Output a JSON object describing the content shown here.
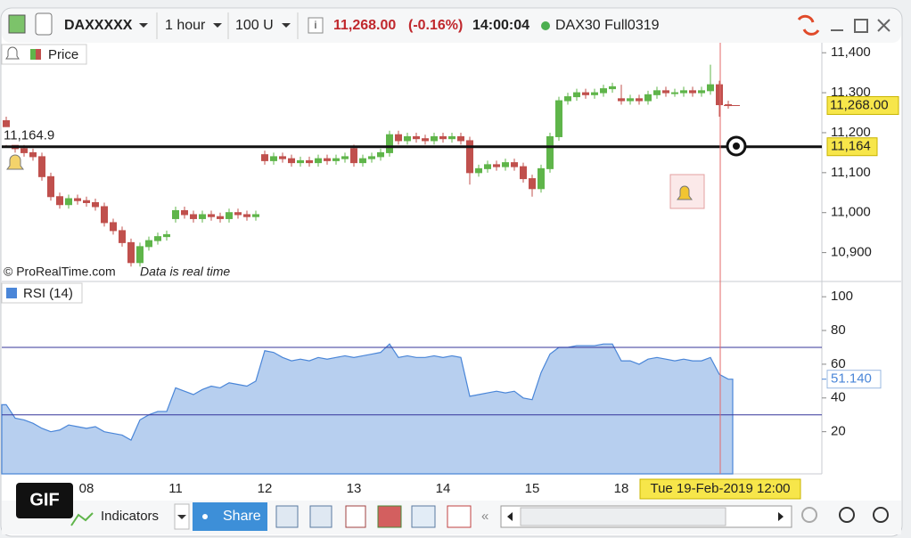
{
  "toolbar": {
    "symbol": "DAXXXXX",
    "timeframe": "1 hour",
    "units": "100 U",
    "last_price": "11,268.00",
    "change": "(-0.16%)",
    "time": "14:00:04",
    "feed": "DAX30 Full0319"
  },
  "bottom_bar": {
    "indicators": "Indicators",
    "share": "Share"
  },
  "gif_badge": "GIF",
  "chart_data": [
    {
      "type": "candlestick",
      "title": "Price",
      "credit": "© ProRealTime.com",
      "note": "Data is real time",
      "up_color": "#5fb54a",
      "down_color": "#c0504d",
      "open": [
        11230,
        11175,
        11160,
        11150,
        11140,
        11090,
        11040,
        11020,
        11035,
        11030,
        11025,
        11015,
        10975,
        10955,
        10925,
        10875,
        10915,
        10930,
        10940,
        10985,
        11005,
        10995,
        10985,
        10995,
        10990,
        10985,
        11000,
        10995,
        10990,
        11145,
        11130,
        11140,
        11135,
        11125,
        11130,
        11125,
        11135,
        11130,
        11135,
        11160,
        11125,
        11135,
        11140,
        11150,
        11195,
        11180,
        11190,
        11185,
        11180,
        11190,
        11185,
        11190,
        11180,
        11100,
        11110,
        11120,
        11115,
        11125,
        11115,
        11085,
        11060,
        11110,
        11190,
        11280,
        11290,
        11300,
        11295,
        11300,
        11310,
        11285,
        11280,
        11285,
        11280,
        11295,
        11305,
        11300,
        11300,
        11305,
        11300,
        11305,
        11320,
        11270
      ],
      "high": [
        11240,
        11185,
        11170,
        11160,
        11150,
        11100,
        11050,
        11045,
        11045,
        11040,
        11035,
        11025,
        10985,
        10965,
        10935,
        10925,
        10940,
        10950,
        10955,
        11015,
        11015,
        11005,
        11005,
        11005,
        11000,
        11010,
        11010,
        11005,
        11005,
        11155,
        11150,
        11150,
        11145,
        11140,
        11140,
        11145,
        11145,
        11145,
        11150,
        11170,
        11145,
        11150,
        11160,
        11205,
        11205,
        11200,
        11200,
        11195,
        11200,
        11200,
        11200,
        11200,
        11190,
        11120,
        11130,
        11130,
        11135,
        11135,
        11125,
        11095,
        11120,
        11200,
        11290,
        11300,
        11310,
        11310,
        11310,
        11320,
        11325,
        11320,
        11295,
        11295,
        11305,
        11315,
        11315,
        11310,
        11315,
        11315,
        11315,
        11370,
        11330,
        11280
      ],
      "low": [
        11165,
        11150,
        11140,
        11130,
        11080,
        11030,
        11010,
        11010,
        11020,
        11015,
        11005,
        10965,
        10945,
        10915,
        10865,
        10865,
        10905,
        10920,
        10930,
        10975,
        10985,
        10975,
        10975,
        10980,
        10975,
        10975,
        10985,
        10980,
        10980,
        11120,
        11120,
        11125,
        11115,
        11115,
        11115,
        11115,
        11120,
        11120,
        11125,
        11115,
        11115,
        11125,
        11130,
        11140,
        11170,
        11170,
        11175,
        11170,
        11170,
        11175,
        11175,
        11170,
        11070,
        11090,
        11100,
        11105,
        11105,
        11105,
        11075,
        11040,
        11050,
        11100,
        11180,
        11270,
        11280,
        11285,
        11285,
        11290,
        11300,
        11270,
        11270,
        11270,
        11270,
        11285,
        11290,
        11290,
        11290,
        11290,
        11290,
        11295,
        11240,
        11260
      ],
      "close": [
        11175,
        11160,
        11150,
        11140,
        11090,
        11040,
        11020,
        11035,
        11030,
        11025,
        11015,
        10975,
        10955,
        10925,
        10875,
        10915,
        10930,
        10940,
        10945,
        11005,
        10995,
        10985,
        10995,
        10990,
        10985,
        11000,
        10995,
        10990,
        10995,
        11130,
        11140,
        11135,
        11125,
        11130,
        11125,
        11135,
        11130,
        11135,
        11140,
        11125,
        11135,
        11140,
        11150,
        11195,
        11180,
        11190,
        11185,
        11180,
        11190,
        11185,
        11190,
        11180,
        11100,
        11110,
        11120,
        11115,
        11125,
        11115,
        11085,
        11060,
        11110,
        11190,
        11280,
        11290,
        11300,
        11295,
        11300,
        11310,
        11315,
        11280,
        11285,
        11280,
        11295,
        11305,
        11300,
        11300,
        11305,
        11300,
        11305,
        11320,
        11270,
        11268
      ],
      "last_value": {
        "value": 11268,
        "label": "11,268.00"
      },
      "alert_line": {
        "value": 11164.9,
        "label": "11,164.9",
        "axis_label": "11,164"
      },
      "ylim": [
        10830,
        11425
      ],
      "yticks": [
        {
          "value": 11400,
          "label": "11,400"
        },
        {
          "value": 11300,
          "label": "11,300"
        },
        {
          "value": 11200,
          "label": "11,200"
        },
        {
          "value": 11100,
          "label": "11,100"
        },
        {
          "value": 11000,
          "label": "11,000"
        },
        {
          "value": 10900,
          "label": "10,900"
        }
      ]
    },
    {
      "type": "area",
      "categories": [
        null,
        null,
        null,
        null,
        null,
        null,
        null,
        null,
        null,
        "08",
        null,
        null,
        null,
        null,
        null,
        null,
        null,
        null,
        null,
        "11",
        null,
        null,
        null,
        null,
        null,
        null,
        null,
        null,
        null,
        "12",
        null,
        null,
        null,
        null,
        null,
        null,
        null,
        null,
        null,
        "13",
        null,
        null,
        null,
        null,
        null,
        null,
        null,
        null,
        null,
        "14",
        null,
        null,
        null,
        null,
        null,
        null,
        null,
        null,
        null,
        "15",
        null,
        null,
        null,
        null,
        null,
        null,
        null,
        null,
        null,
        "18",
        null,
        null,
        null,
        null,
        null,
        null,
        null,
        null,
        null,
        null,
        null,
        null
      ],
      "crosshair_label": "Tue 19-Feb-2019 12:00",
      "series": [
        {
          "name": "RSI (14)",
          "color": "#4a86d8",
          "values": [
            36,
            28,
            27,
            25,
            22,
            20,
            21,
            24,
            23,
            22,
            23,
            20,
            19,
            18,
            15,
            27,
            30,
            32,
            32,
            46,
            44,
            42,
            45,
            47,
            46,
            49,
            48,
            47,
            50,
            68,
            67,
            64,
            62,
            63,
            62,
            64,
            63,
            64,
            65,
            64,
            65,
            66,
            67,
            72,
            64,
            65,
            64,
            64,
            65,
            64,
            65,
            64,
            41,
            42,
            43,
            44,
            43,
            44,
            40,
            39,
            55,
            66,
            70,
            70,
            71,
            71,
            71,
            72,
            72,
            62,
            62,
            60,
            63,
            64,
            63,
            62,
            63,
            62,
            62,
            64,
            54,
            51.14
          ]
        }
      ],
      "last_value": {
        "value": 51.14,
        "label": "51.140"
      },
      "levels": [
        30,
        70
      ],
      "level_color": "#34349a",
      "ylim": [
        -5,
        108
      ],
      "yticks": [
        100,
        80,
        60,
        40,
        20
      ]
    }
  ]
}
